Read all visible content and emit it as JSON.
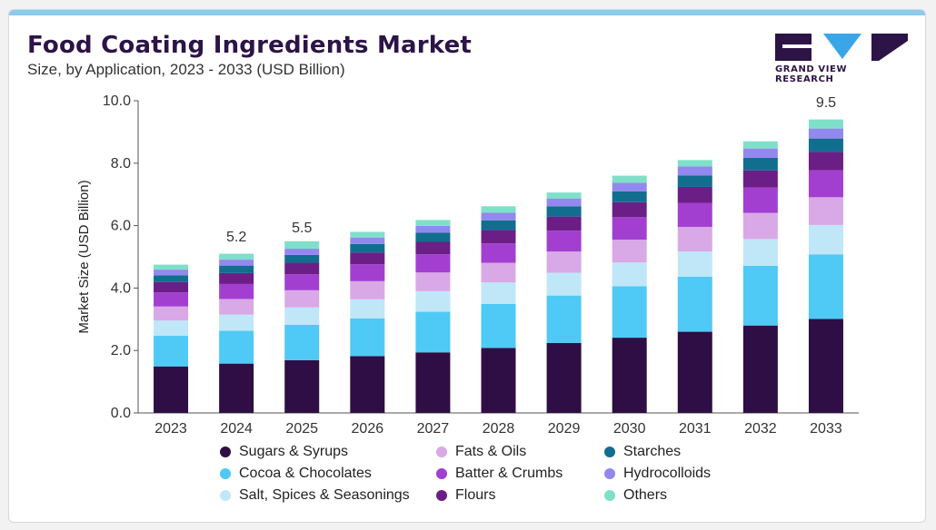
{
  "header": {
    "title": "Food Coating Ingredients Market",
    "subtitle": "Size, by Application, 2023 - 2033 (USD Billion)"
  },
  "logo": {
    "text": "GRAND VIEW RESEARCH",
    "color": "#2c1447",
    "accent": "#3aa6e8"
  },
  "colors": {
    "card": "#ffffff",
    "title": "#2c1447",
    "topbar": "#8ec9ee"
  },
  "chart_data": {
    "type": "bar",
    "stacked": true,
    "title": "Food Coating Ingredients Market",
    "subtitle": "Size, by Application, 2023 - 2033 (USD Billion)",
    "xlabel": "",
    "ylabel": "Market Size (USD Billion)",
    "ylim": [
      0,
      10
    ],
    "yticks": [
      "0.0",
      "2.0",
      "4.0",
      "6.0",
      "8.0",
      "10.0"
    ],
    "ytick_values": [
      0,
      2,
      4,
      6,
      8,
      10
    ],
    "grid": false,
    "legend_position": "bottom",
    "categories": [
      "2023",
      "2024",
      "2025",
      "2026",
      "2027",
      "2028",
      "2029",
      "2030",
      "2031",
      "2032",
      "2033"
    ],
    "series": [
      {
        "name": "Sugars & Syrups",
        "color": "#2e0e44",
        "values": [
          1.49,
          1.58,
          1.69,
          1.82,
          1.94,
          2.08,
          2.24,
          2.41,
          2.6,
          2.8,
          3.01
        ]
      },
      {
        "name": "Cocoa & Chocolates",
        "color": "#4fc9f5",
        "values": [
          0.98,
          1.05,
          1.13,
          1.21,
          1.3,
          1.41,
          1.52,
          1.65,
          1.76,
          1.91,
          2.07
        ]
      },
      {
        "name": "Salt, Spices & Seasonings",
        "color": "#bfe7f8",
        "values": [
          0.49,
          0.52,
          0.56,
          0.61,
          0.66,
          0.69,
          0.73,
          0.76,
          0.81,
          0.86,
          0.94
        ]
      },
      {
        "name": "Fats & Oils",
        "color": "#d9a8e6",
        "values": [
          0.45,
          0.5,
          0.55,
          0.58,
          0.6,
          0.63,
          0.68,
          0.73,
          0.79,
          0.84,
          0.89
        ]
      },
      {
        "name": "Batter & Crumbs",
        "color": "#a23fd0",
        "values": [
          0.45,
          0.48,
          0.51,
          0.54,
          0.58,
          0.62,
          0.67,
          0.72,
          0.77,
          0.81,
          0.86
        ]
      },
      {
        "name": "Flours",
        "color": "#6b1f86",
        "values": [
          0.33,
          0.35,
          0.37,
          0.38,
          0.4,
          0.43,
          0.45,
          0.48,
          0.51,
          0.55,
          0.59
        ]
      },
      {
        "name": "Starches",
        "color": "#116e8e",
        "values": [
          0.22,
          0.24,
          0.25,
          0.27,
          0.29,
          0.31,
          0.33,
          0.35,
          0.37,
          0.4,
          0.43
        ]
      },
      {
        "name": "Hydrocolloids",
        "color": "#9388ee",
        "values": [
          0.18,
          0.19,
          0.2,
          0.21,
          0.22,
          0.24,
          0.25,
          0.27,
          0.29,
          0.3,
          0.32
        ]
      },
      {
        "name": "Others",
        "color": "#7fe0c9",
        "values": [
          0.16,
          0.19,
          0.24,
          0.18,
          0.19,
          0.21,
          0.19,
          0.23,
          0.2,
          0.23,
          0.29
        ]
      }
    ],
    "annotations": [
      {
        "category": "2024",
        "text": "5.2",
        "value": 5.2
      },
      {
        "category": "2025",
        "text": "5.5",
        "value": 5.5
      },
      {
        "category": "2033",
        "text": "9.5",
        "value": 9.5
      }
    ]
  }
}
